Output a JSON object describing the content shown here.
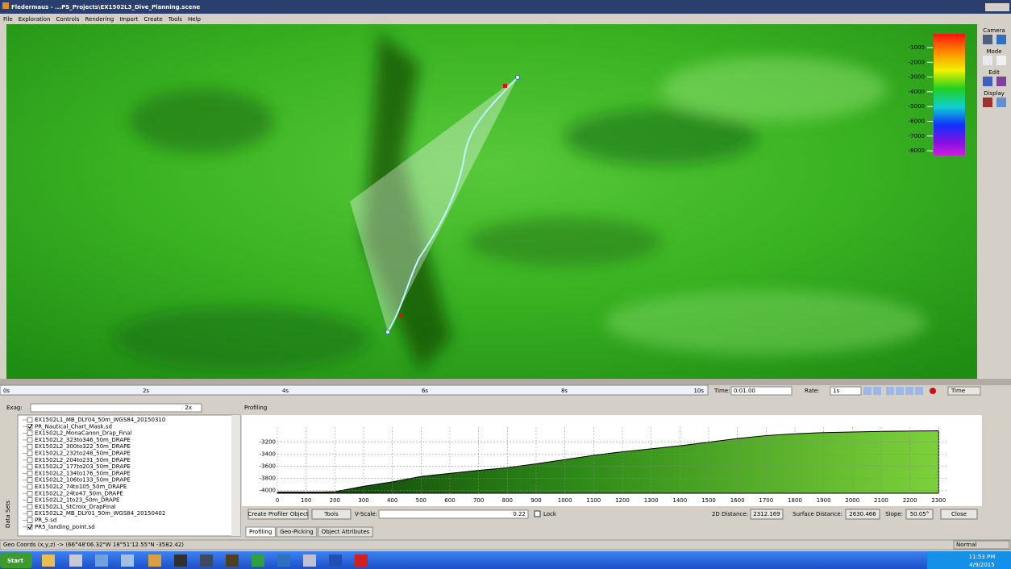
{
  "window": {
    "title": "Fledermaus - ...PS_Projects\\EX1502L3_Dive_Planning.scene",
    "menu": [
      "File",
      "Exploration",
      "Controls",
      "Rendering",
      "Import",
      "Create",
      "Tools",
      "Help"
    ]
  },
  "scene": {
    "color_scale": [
      -1000,
      -2000,
      -3000,
      -4000,
      -5000,
      -6000,
      -7000,
      -8000
    ],
    "toolbar": [
      "Camera",
      "Mode",
      "Edit",
      "Display"
    ]
  },
  "timeline": {
    "ticks": [
      "0s",
      "2s",
      "4s",
      "6s",
      "8s",
      "10s"
    ],
    "time_label": "Time:",
    "time_value": "0:01.00",
    "rate_label": "Rate:",
    "rate_value": "1s",
    "mode": "Time"
  },
  "datasets": {
    "exag_label": "Exag:",
    "exag_value": "2x",
    "side_label": "Data Sets",
    "layers": [
      {
        "name": "EX1502L1_MB_DLY04_50m_WGS84_20150310",
        "checked": false
      },
      {
        "name": "PR_Nautical_Chart_Mask.sd",
        "checked": true
      },
      {
        "name": "EX1502L2_MonaCanon_Drap_Final",
        "checked": false
      },
      {
        "name": "EX1502L2_323to346_50m_DRAPE",
        "checked": false
      },
      {
        "name": "EX1502L2_300to322_50m_DRAPE",
        "checked": false
      },
      {
        "name": "EX1502L2_232to248_50m_DRAPE",
        "checked": false
      },
      {
        "name": "EX1502L2_204to231_50m_DRAPE",
        "checked": false
      },
      {
        "name": "EX1502L2_177to203_50m_DRAPE",
        "checked": false
      },
      {
        "name": "EX1502L2_134to176_50m_DRAPE",
        "checked": false
      },
      {
        "name": "EX1502L2_106to133_50m_DRAPE",
        "checked": false
      },
      {
        "name": "EX1502L2_74to105_50m_DRAPE",
        "checked": false
      },
      {
        "name": "EX1502L2_24to47_50m_DRAPE",
        "checked": false
      },
      {
        "name": "EX1502L2_1to23_50m_DRAPE",
        "checked": false
      },
      {
        "name": "EX1502L1_StCroix_DrapFinal",
        "checked": false
      },
      {
        "name": "EX1502L2_MB_DLY01_50m_WGS84_20150402",
        "checked": false
      },
      {
        "name": "PR_5.sd",
        "checked": false
      },
      {
        "name": "PR5_landing_point.sd",
        "checked": true
      }
    ]
  },
  "profiling": {
    "header": "Profiling",
    "create": "Create Profiler Object",
    "tools": "Tools",
    "vscale_label": "V-Scale:",
    "vscale_value": 0.22,
    "lock": "Lock",
    "distance_2d_label": "2D Distance:",
    "distance_2d": 2312.169,
    "surface_label": "Surface Distance:",
    "surface": 2630.466,
    "slope_label": "Slope:",
    "slope": "50.05°",
    "close": "Close",
    "tabs": [
      "Profiling",
      "Geo-Picking",
      "Object Attributes"
    ]
  },
  "chart_data": {
    "type": "area",
    "x": [
      0,
      150,
      200,
      300,
      400,
      500,
      600,
      700,
      800,
      900,
      1000,
      1100,
      1200,
      1300,
      1400,
      1500,
      1600,
      1700,
      1800,
      1900,
      2000,
      2100,
      2200,
      2300
    ],
    "values": [
      -4030,
      -4030,
      -4025,
      -3935,
      -3860,
      -3770,
      -3720,
      -3670,
      -3625,
      -3560,
      -3490,
      -3420,
      -3360,
      -3310,
      -3260,
      -3200,
      -3140,
      -3090,
      -3060,
      -3040,
      -3030,
      -3020,
      -3015,
      -3010
    ],
    "xlim": [
      0,
      2330
    ],
    "ylim": [
      -4050,
      -2950
    ],
    "xticks": [
      0,
      100,
      200,
      300,
      400,
      500,
      600,
      700,
      800,
      900,
      1000,
      1100,
      1200,
      1300,
      1400,
      1500,
      1600,
      1700,
      1800,
      1900,
      2000,
      2100,
      2200,
      2300
    ],
    "yticks": [
      -3200,
      -3400,
      -3600,
      -3800,
      -4000
    ],
    "color": "#3aa31a",
    "grid": true
  },
  "status": {
    "coords": "Geo Coords (x,y,z) -> (66°48'06.32\"W 18°51'12.55\"N -3582.42)",
    "mode": "Normal"
  },
  "taskbar": {
    "start": "Start",
    "time": "11:53 PM",
    "date": "4/9/2015"
  }
}
